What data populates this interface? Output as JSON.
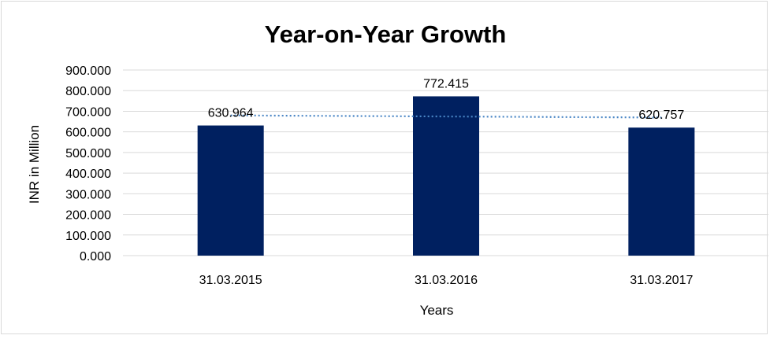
{
  "chart_data": {
    "type": "bar",
    "title": "Year-on-Year Growth",
    "xlabel": "Years",
    "ylabel": "INR in Million",
    "categories": [
      "31.03.2015",
      "31.03.2016",
      "31.03.2017"
    ],
    "values": [
      630.964,
      772.415,
      620.757
    ],
    "data_labels": [
      "630.964",
      "772.415",
      "620.757"
    ],
    "ylim": [
      0,
      900
    ],
    "yticks": [
      0,
      100,
      200,
      300,
      400,
      500,
      600,
      700,
      800,
      900
    ],
    "ytick_labels": [
      "0.000",
      "100.000",
      "200.000",
      "300.000",
      "400.000",
      "500.000",
      "600.000",
      "700.000",
      "800.000",
      "900.000"
    ],
    "grid": true,
    "trendline": {
      "type": "linear",
      "style": "dotted",
      "color": "#4a86c5"
    },
    "bar_color": "#002060",
    "legend": "none"
  }
}
